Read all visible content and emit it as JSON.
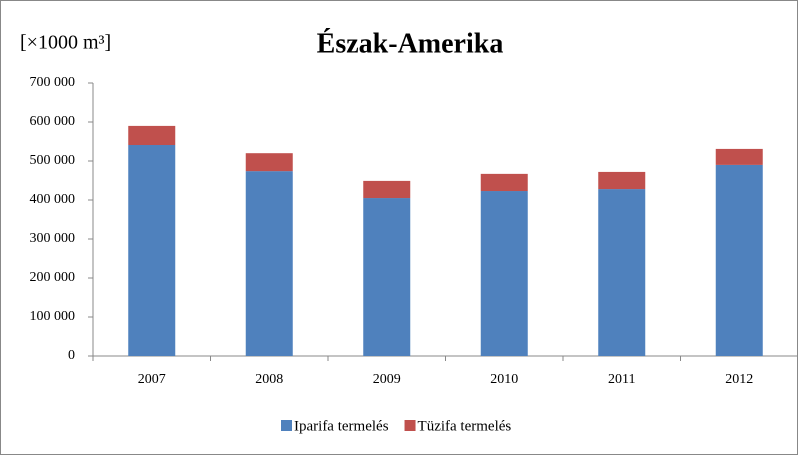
{
  "chart_data": {
    "type": "stacked_bar",
    "title": "Észak-Amerika",
    "y_label": "[×1000 m³]",
    "categories": [
      "2007",
      "2008",
      "2009",
      "2010",
      "2011",
      "2012"
    ],
    "series": [
      {
        "name": "Iparifa termelés",
        "color": "#4f81bd",
        "values": [
          541000,
          474000,
          405000,
          423000,
          428000,
          490000
        ]
      },
      {
        "name": "Tüzifa termelés",
        "color": "#c0504d",
        "values": [
          49000,
          46000,
          44000,
          44000,
          44000,
          41000
        ]
      }
    ],
    "ylim": [
      0,
      700000
    ],
    "yticks": [
      0,
      {
        "value": 100000,
        "label": "100 000"
      },
      {
        "value": 200000,
        "label": "200 000"
      },
      {
        "value": 300000,
        "label": "300 000"
      },
      {
        "value": 400000,
        "label": "400 000"
      },
      {
        "value": 500000,
        "label": "500 000"
      },
      {
        "value": 600000,
        "label": "600 000"
      },
      {
        "value": 700000,
        "label": "700 000"
      }
    ],
    "legend": "bottom"
  }
}
